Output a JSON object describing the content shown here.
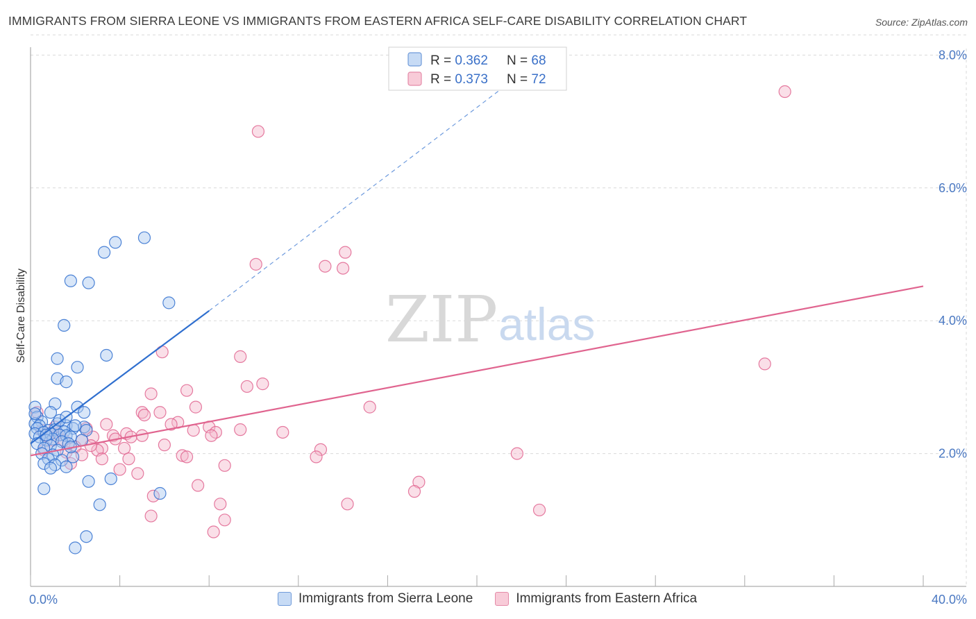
{
  "title": "IMMIGRANTS FROM SIERRA LEONE VS IMMIGRANTS FROM EASTERN AFRICA SELF-CARE DISABILITY CORRELATION CHART",
  "source": "Source: ZipAtlas.com",
  "watermark": {
    "zip": "ZIP",
    "atlas": "atlas"
  },
  "colors": {
    "blue": "#2f6fcf",
    "blue_fill": "#a9c8f0",
    "pink": "#e0648f",
    "pink_fill": "#f5b8cb",
    "tick_text": "#4a78c2",
    "grid": "#d9d9d9"
  },
  "chart_data": {
    "type": "scatter",
    "title": "IMMIGRANTS FROM SIERRA LEONE VS IMMIGRANTS FROM EASTERN AFRICA SELF-CARE DISABILITY CORRELATION CHART",
    "xlabel": "",
    "ylabel": "Self-Care Disability",
    "xlim": [
      0,
      40
    ],
    "ylim": [
      0,
      8.3
    ],
    "x_tick_labels": [
      "0.0%",
      "40.0%"
    ],
    "y_ticks": [
      2.0,
      4.0,
      6.0,
      8.0
    ],
    "y_tick_labels": [
      "2.0%",
      "4.0%",
      "6.0%",
      "8.0%"
    ],
    "legend": [
      {
        "name": "Immigrants from Sierra Leone",
        "r_label": "R = ",
        "r": "0.362",
        "n_label": "N = ",
        "n": "68"
      },
      {
        "name": "Immigrants from Eastern Africa",
        "r_label": "R = ",
        "r": "0.373",
        "n_label": "N = ",
        "n": "72"
      }
    ],
    "series": [
      {
        "name": "Immigrants from Sierra Leone",
        "trend": {
          "x0": 0.0,
          "y0": 2.15,
          "x1": 8.0,
          "y1": 4.15,
          "dash_x1": 22.5,
          "dash_y1": 7.85
        },
        "points": [
          [
            5.1,
            5.25
          ],
          [
            3.8,
            5.18
          ],
          [
            3.3,
            5.03
          ],
          [
            1.8,
            4.6
          ],
          [
            2.6,
            4.57
          ],
          [
            6.2,
            4.27
          ],
          [
            1.5,
            3.93
          ],
          [
            3.4,
            3.48
          ],
          [
            1.2,
            3.43
          ],
          [
            2.1,
            3.3
          ],
          [
            1.2,
            3.13
          ],
          [
            1.6,
            3.08
          ],
          [
            0.2,
            2.7
          ],
          [
            1.1,
            2.75
          ],
          [
            2.1,
            2.7
          ],
          [
            0.9,
            2.62
          ],
          [
            2.4,
            2.62
          ],
          [
            0.3,
            2.55
          ],
          [
            0.5,
            2.48
          ],
          [
            0.2,
            2.45
          ],
          [
            0.4,
            2.42
          ],
          [
            1.2,
            2.45
          ],
          [
            1.6,
            2.42
          ],
          [
            2.4,
            2.4
          ],
          [
            1.9,
            2.38
          ],
          [
            0.3,
            2.38
          ],
          [
            0.8,
            2.35
          ],
          [
            1.1,
            2.36
          ],
          [
            1.5,
            2.33
          ],
          [
            2.5,
            2.35
          ],
          [
            0.2,
            2.3
          ],
          [
            0.6,
            2.32
          ],
          [
            0.9,
            2.3
          ],
          [
            1.3,
            2.28
          ],
          [
            1.6,
            2.27
          ],
          [
            0.4,
            2.25
          ],
          [
            1.0,
            2.22
          ],
          [
            1.8,
            2.25
          ],
          [
            0.7,
            2.2
          ],
          [
            1.4,
            2.18
          ],
          [
            2.3,
            2.2
          ],
          [
            0.3,
            2.15
          ],
          [
            0.9,
            2.12
          ],
          [
            1.7,
            2.15
          ],
          [
            0.6,
            2.08
          ],
          [
            1.2,
            2.05
          ],
          [
            0.5,
            2.0
          ],
          [
            1.0,
            1.98
          ],
          [
            1.9,
            1.95
          ],
          [
            0.8,
            1.92
          ],
          [
            1.4,
            1.9
          ],
          [
            0.6,
            1.85
          ],
          [
            1.1,
            1.83
          ],
          [
            1.6,
            1.8
          ],
          [
            0.9,
            1.78
          ],
          [
            2.6,
            1.58
          ],
          [
            3.6,
            1.62
          ],
          [
            0.6,
            1.47
          ],
          [
            5.8,
            1.4
          ],
          [
            3.1,
            1.23
          ],
          [
            2.5,
            0.75
          ],
          [
            2.0,
            0.58
          ],
          [
            1.3,
            2.5
          ],
          [
            2.0,
            2.42
          ],
          [
            0.2,
            2.6
          ],
          [
            1.6,
            2.55
          ],
          [
            0.7,
            2.28
          ],
          [
            1.8,
            2.1
          ]
        ]
      },
      {
        "name": "Immigrants from Eastern Africa",
        "trend": {
          "x0": 0.0,
          "y0": 1.97,
          "x1": 40.0,
          "y1": 4.52
        },
        "points": [
          [
            33.8,
            7.45
          ],
          [
            10.2,
            6.85
          ],
          [
            14.1,
            5.03
          ],
          [
            10.1,
            4.85
          ],
          [
            13.2,
            4.82
          ],
          [
            14.0,
            4.79
          ],
          [
            32.9,
            3.35
          ],
          [
            5.9,
            3.53
          ],
          [
            9.4,
            3.46
          ],
          [
            10.4,
            3.05
          ],
          [
            9.7,
            3.01
          ],
          [
            7.0,
            2.95
          ],
          [
            5.4,
            2.9
          ],
          [
            15.2,
            2.7
          ],
          [
            7.4,
            2.7
          ],
          [
            5.0,
            2.62
          ],
          [
            5.8,
            2.62
          ],
          [
            5.1,
            2.58
          ],
          [
            6.6,
            2.47
          ],
          [
            6.3,
            2.44
          ],
          [
            3.4,
            2.44
          ],
          [
            8.0,
            2.4
          ],
          [
            9.4,
            2.36
          ],
          [
            2.5,
            2.38
          ],
          [
            8.3,
            2.32
          ],
          [
            4.3,
            2.3
          ],
          [
            7.3,
            2.35
          ],
          [
            11.3,
            2.32
          ],
          [
            3.7,
            2.27
          ],
          [
            2.8,
            2.25
          ],
          [
            4.5,
            2.25
          ],
          [
            0.7,
            2.27
          ],
          [
            1.2,
            2.3
          ],
          [
            8.1,
            2.27
          ],
          [
            2.3,
            2.2
          ],
          [
            1.0,
            2.2
          ],
          [
            1.5,
            2.2
          ],
          [
            0.5,
            2.35
          ],
          [
            6.0,
            2.13
          ],
          [
            2.0,
            2.1
          ],
          [
            3.2,
            2.08
          ],
          [
            3.0,
            2.05
          ],
          [
            4.2,
            2.08
          ],
          [
            13.0,
            2.06
          ],
          [
            1.6,
            2.02
          ],
          [
            2.3,
            1.98
          ],
          [
            6.8,
            1.97
          ],
          [
            7.0,
            1.95
          ],
          [
            12.8,
            1.95
          ],
          [
            21.8,
            2.0
          ],
          [
            4.4,
            1.92
          ],
          [
            3.2,
            1.92
          ],
          [
            1.8,
            1.85
          ],
          [
            8.7,
            1.82
          ],
          [
            4.0,
            1.76
          ],
          [
            4.8,
            1.7
          ],
          [
            17.4,
            1.57
          ],
          [
            7.5,
            1.52
          ],
          [
            17.2,
            1.43
          ],
          [
            5.5,
            1.36
          ],
          [
            14.2,
            1.24
          ],
          [
            8.5,
            1.24
          ],
          [
            22.8,
            1.15
          ],
          [
            5.4,
            1.06
          ],
          [
            8.7,
            1.0
          ],
          [
            8.2,
            0.82
          ],
          [
            0.3,
            2.62
          ],
          [
            0.6,
            2.05
          ],
          [
            1.1,
            2.4
          ],
          [
            3.8,
            2.22
          ],
          [
            2.7,
            2.12
          ],
          [
            5.0,
            2.27
          ]
        ]
      }
    ]
  },
  "bottom_legend": [
    {
      "label": "Immigrants from Sierra Leone"
    },
    {
      "label": "Immigrants from Eastern Africa"
    }
  ]
}
